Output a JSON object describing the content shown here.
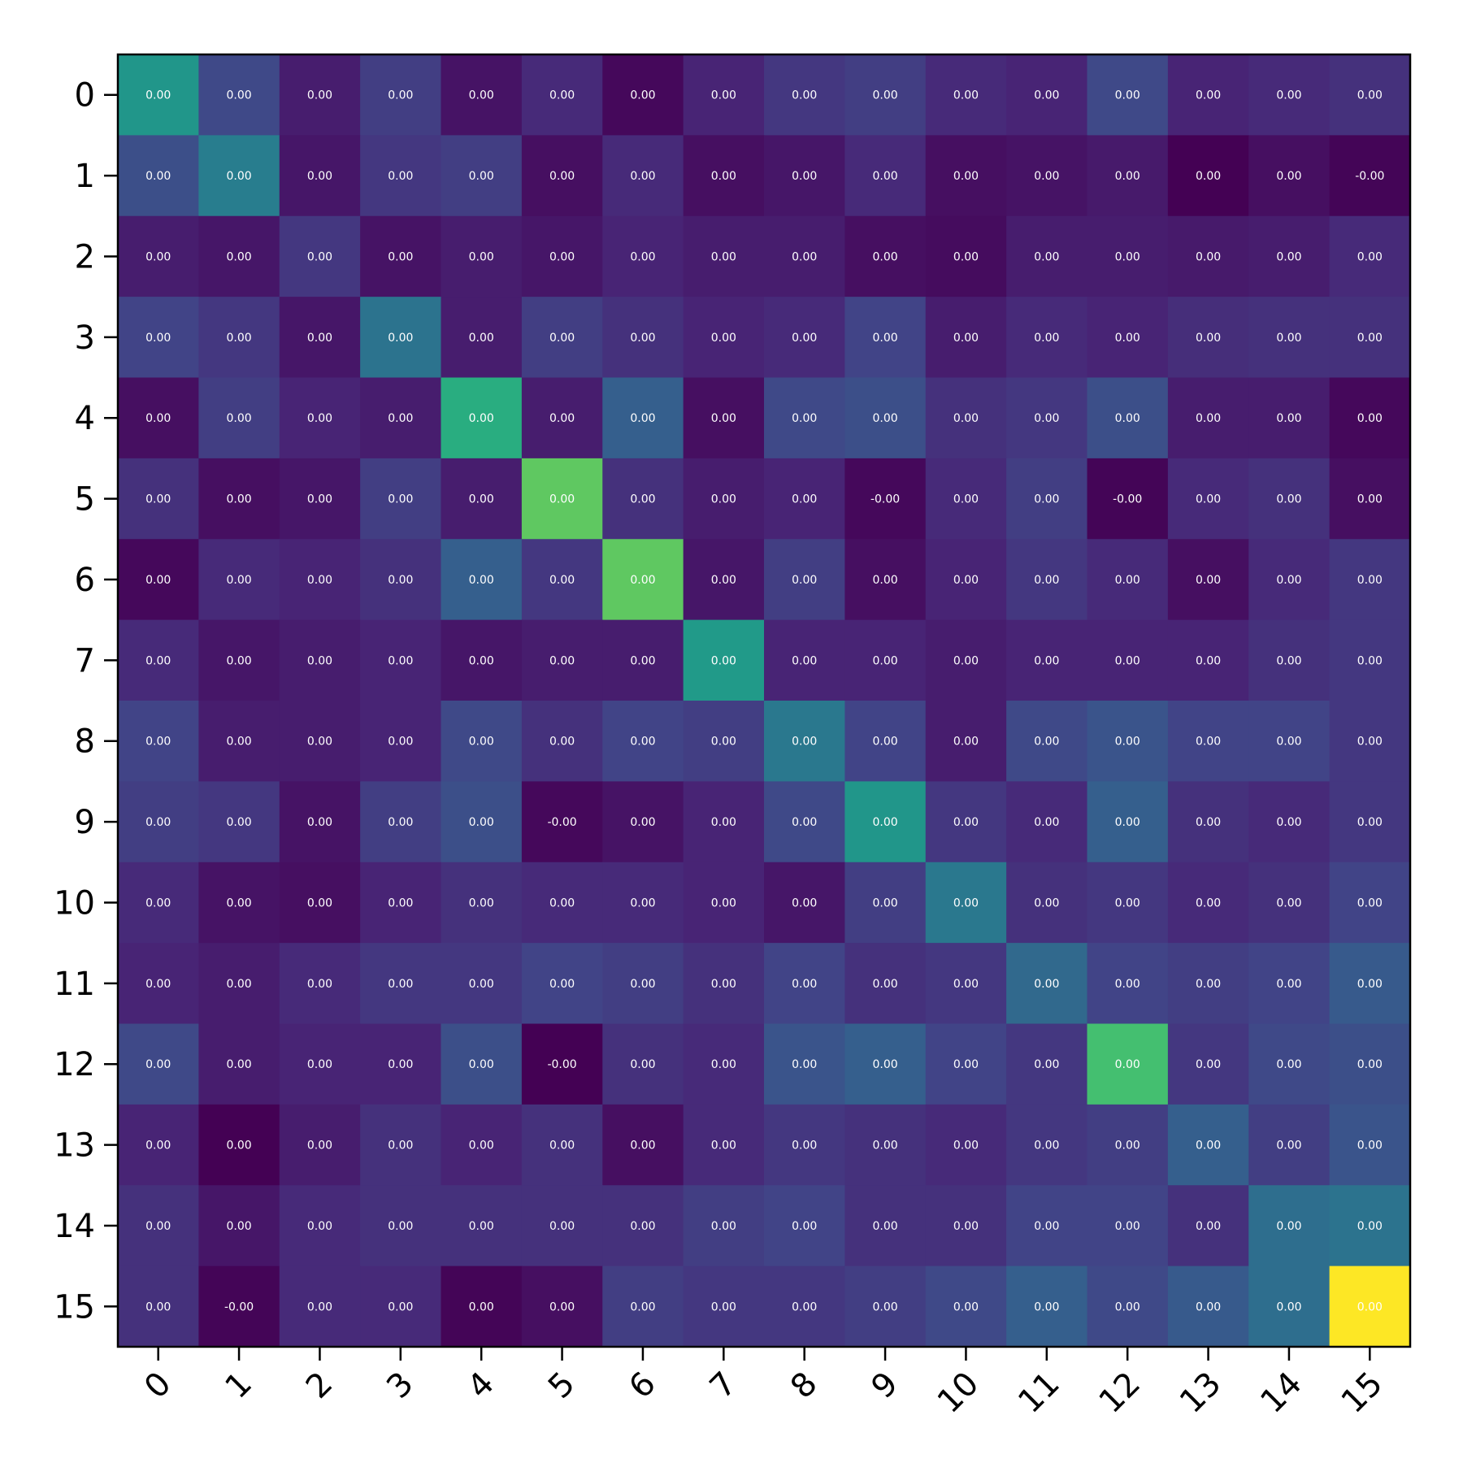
{
  "chart_data": {
    "type": "heatmap",
    "title": "",
    "xlabel": "",
    "ylabel": "",
    "colormap": "viridis",
    "x_categories": [
      "0",
      "1",
      "2",
      "3",
      "4",
      "5",
      "6",
      "7",
      "8",
      "9",
      "10",
      "11",
      "12",
      "13",
      "14",
      "15"
    ],
    "y_categories": [
      "0",
      "1",
      "2",
      "3",
      "4",
      "5",
      "6",
      "7",
      "8",
      "9",
      "10",
      "11",
      "12",
      "13",
      "14",
      "15"
    ],
    "cell_labels": [
      [
        "0.00",
        "0.00",
        "0.00",
        "0.00",
        "0.00",
        "0.00",
        "0.00",
        "0.00",
        "0.00",
        "0.00",
        "0.00",
        "0.00",
        "0.00",
        "0.00",
        "0.00",
        "0.00"
      ],
      [
        "0.00",
        "0.00",
        "0.00",
        "0.00",
        "0.00",
        "0.00",
        "0.00",
        "0.00",
        "0.00",
        "0.00",
        "0.00",
        "0.00",
        "0.00",
        "0.00",
        "0.00",
        "-0.00"
      ],
      [
        "0.00",
        "0.00",
        "0.00",
        "0.00",
        "0.00",
        "0.00",
        "0.00",
        "0.00",
        "0.00",
        "0.00",
        "0.00",
        "0.00",
        "0.00",
        "0.00",
        "0.00",
        "0.00"
      ],
      [
        "0.00",
        "0.00",
        "0.00",
        "0.00",
        "0.00",
        "0.00",
        "0.00",
        "0.00",
        "0.00",
        "0.00",
        "0.00",
        "0.00",
        "0.00",
        "0.00",
        "0.00",
        "0.00"
      ],
      [
        "0.00",
        "0.00",
        "0.00",
        "0.00",
        "0.00",
        "0.00",
        "0.00",
        "0.00",
        "0.00",
        "0.00",
        "0.00",
        "0.00",
        "0.00",
        "0.00",
        "0.00",
        "0.00"
      ],
      [
        "0.00",
        "0.00",
        "0.00",
        "0.00",
        "0.00",
        "0.00",
        "0.00",
        "0.00",
        "0.00",
        "-0.00",
        "0.00",
        "0.00",
        "-0.00",
        "0.00",
        "0.00",
        "0.00"
      ],
      [
        "0.00",
        "0.00",
        "0.00",
        "0.00",
        "0.00",
        "0.00",
        "0.00",
        "0.00",
        "0.00",
        "0.00",
        "0.00",
        "0.00",
        "0.00",
        "0.00",
        "0.00",
        "0.00"
      ],
      [
        "0.00",
        "0.00",
        "0.00",
        "0.00",
        "0.00",
        "0.00",
        "0.00",
        "0.00",
        "0.00",
        "0.00",
        "0.00",
        "0.00",
        "0.00",
        "0.00",
        "0.00",
        "0.00"
      ],
      [
        "0.00",
        "0.00",
        "0.00",
        "0.00",
        "0.00",
        "0.00",
        "0.00",
        "0.00",
        "0.00",
        "0.00",
        "0.00",
        "0.00",
        "0.00",
        "0.00",
        "0.00",
        "0.00"
      ],
      [
        "0.00",
        "0.00",
        "0.00",
        "0.00",
        "0.00",
        "-0.00",
        "0.00",
        "0.00",
        "0.00",
        "0.00",
        "0.00",
        "0.00",
        "0.00",
        "0.00",
        "0.00",
        "0.00"
      ],
      [
        "0.00",
        "0.00",
        "0.00",
        "0.00",
        "0.00",
        "0.00",
        "0.00",
        "0.00",
        "0.00",
        "0.00",
        "0.00",
        "0.00",
        "0.00",
        "0.00",
        "0.00",
        "0.00"
      ],
      [
        "0.00",
        "0.00",
        "0.00",
        "0.00",
        "0.00",
        "0.00",
        "0.00",
        "0.00",
        "0.00",
        "0.00",
        "0.00",
        "0.00",
        "0.00",
        "0.00",
        "0.00",
        "0.00"
      ],
      [
        "0.00",
        "0.00",
        "0.00",
        "0.00",
        "0.00",
        "-0.00",
        "0.00",
        "0.00",
        "0.00",
        "0.00",
        "0.00",
        "0.00",
        "0.00",
        "0.00",
        "0.00",
        "0.00"
      ],
      [
        "0.00",
        "0.00",
        "0.00",
        "0.00",
        "0.00",
        "0.00",
        "0.00",
        "0.00",
        "0.00",
        "0.00",
        "0.00",
        "0.00",
        "0.00",
        "0.00",
        "0.00",
        "0.00"
      ],
      [
        "0.00",
        "0.00",
        "0.00",
        "0.00",
        "0.00",
        "0.00",
        "0.00",
        "0.00",
        "0.00",
        "0.00",
        "0.00",
        "0.00",
        "0.00",
        "0.00",
        "0.00",
        "0.00"
      ],
      [
        "0.00",
        "-0.00",
        "0.00",
        "0.00",
        "0.00",
        "0.00",
        "0.00",
        "0.00",
        "0.00",
        "0.00",
        "0.00",
        "0.00",
        "0.00",
        "0.00",
        "0.00",
        "0.00"
      ]
    ],
    "color_intensity": [
      [
        0.52,
        0.22,
        0.08,
        0.18,
        0.05,
        0.12,
        0.02,
        0.1,
        0.16,
        0.18,
        0.12,
        0.1,
        0.22,
        0.1,
        0.12,
        0.14
      ],
      [
        0.24,
        0.42,
        0.06,
        0.16,
        0.18,
        0.04,
        0.12,
        0.04,
        0.06,
        0.12,
        0.04,
        0.05,
        0.07,
        0.0,
        0.04,
        0.01
      ],
      [
        0.08,
        0.06,
        0.16,
        0.05,
        0.08,
        0.06,
        0.1,
        0.08,
        0.08,
        0.04,
        0.03,
        0.08,
        0.08,
        0.07,
        0.08,
        0.12
      ],
      [
        0.2,
        0.16,
        0.06,
        0.38,
        0.08,
        0.18,
        0.14,
        0.1,
        0.12,
        0.2,
        0.08,
        0.12,
        0.1,
        0.13,
        0.14,
        0.14
      ],
      [
        0.04,
        0.18,
        0.1,
        0.08,
        0.62,
        0.08,
        0.3,
        0.04,
        0.22,
        0.24,
        0.14,
        0.16,
        0.24,
        0.08,
        0.08,
        0.02
      ],
      [
        0.14,
        0.04,
        0.06,
        0.18,
        0.08,
        0.75,
        0.14,
        0.08,
        0.1,
        0.02,
        0.12,
        0.18,
        0.01,
        0.12,
        0.14,
        0.04
      ],
      [
        0.02,
        0.12,
        0.1,
        0.14,
        0.3,
        0.16,
        0.75,
        0.06,
        0.18,
        0.04,
        0.1,
        0.16,
        0.12,
        0.04,
        0.12,
        0.16
      ],
      [
        0.12,
        0.06,
        0.08,
        0.1,
        0.06,
        0.08,
        0.08,
        0.54,
        0.1,
        0.1,
        0.08,
        0.1,
        0.1,
        0.1,
        0.14,
        0.16
      ],
      [
        0.2,
        0.08,
        0.08,
        0.1,
        0.22,
        0.14,
        0.2,
        0.18,
        0.4,
        0.2,
        0.08,
        0.22,
        0.26,
        0.2,
        0.2,
        0.16
      ],
      [
        0.18,
        0.16,
        0.05,
        0.18,
        0.24,
        0.02,
        0.05,
        0.1,
        0.22,
        0.52,
        0.16,
        0.12,
        0.3,
        0.14,
        0.12,
        0.16
      ],
      [
        0.12,
        0.05,
        0.04,
        0.1,
        0.14,
        0.12,
        0.12,
        0.1,
        0.06,
        0.18,
        0.4,
        0.14,
        0.16,
        0.12,
        0.14,
        0.2
      ],
      [
        0.1,
        0.08,
        0.12,
        0.16,
        0.16,
        0.2,
        0.18,
        0.14,
        0.2,
        0.14,
        0.16,
        0.34,
        0.2,
        0.18,
        0.2,
        0.28
      ],
      [
        0.22,
        0.08,
        0.1,
        0.1,
        0.24,
        0.0,
        0.14,
        0.12,
        0.26,
        0.3,
        0.2,
        0.16,
        0.7,
        0.16,
        0.22,
        0.24
      ],
      [
        0.1,
        0.0,
        0.08,
        0.14,
        0.1,
        0.14,
        0.04,
        0.12,
        0.16,
        0.14,
        0.12,
        0.16,
        0.18,
        0.3,
        0.18,
        0.26
      ],
      [
        0.14,
        0.06,
        0.12,
        0.14,
        0.14,
        0.14,
        0.14,
        0.18,
        0.2,
        0.14,
        0.14,
        0.2,
        0.2,
        0.14,
        0.36,
        0.38
      ],
      [
        0.14,
        0.01,
        0.12,
        0.12,
        0.01,
        0.04,
        0.18,
        0.16,
        0.16,
        0.18,
        0.22,
        0.3,
        0.22,
        0.28,
        0.36,
        1.0
      ]
    ],
    "axis": {
      "xtick_rotation_deg": 45,
      "grid": false,
      "legend": "none"
    }
  }
}
